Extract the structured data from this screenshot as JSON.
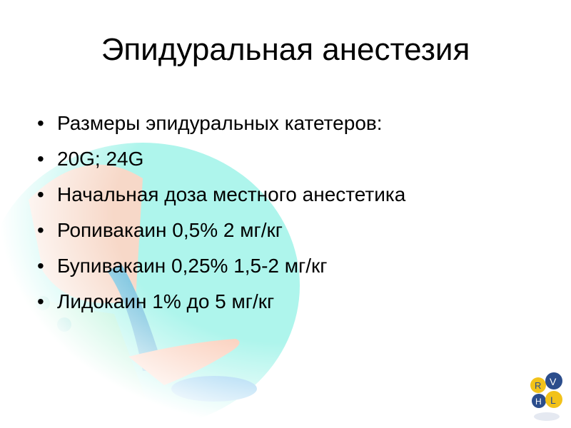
{
  "slide": {
    "title": "Эпидуральная анестезия",
    "bullets": [
      "Размеры эпидуральных катетеров:",
      "20G; 24G",
      "Начальная доза местного анестетика",
      "Ропивакаин 0,5% 2 мг/кг",
      "Бупивакаин 0,25% 1,5-2 мг/кг",
      "Лидокаин 1% до 5 мг/кг"
    ],
    "bullet_glyph": "•"
  },
  "logo": {
    "letters": "RVHL",
    "colors": [
      "#f2c21a",
      "#2b4d8c"
    ]
  },
  "colors": {
    "background": "#ffffff",
    "text": "#000000",
    "illustration_teal": "#9ef2e6"
  }
}
